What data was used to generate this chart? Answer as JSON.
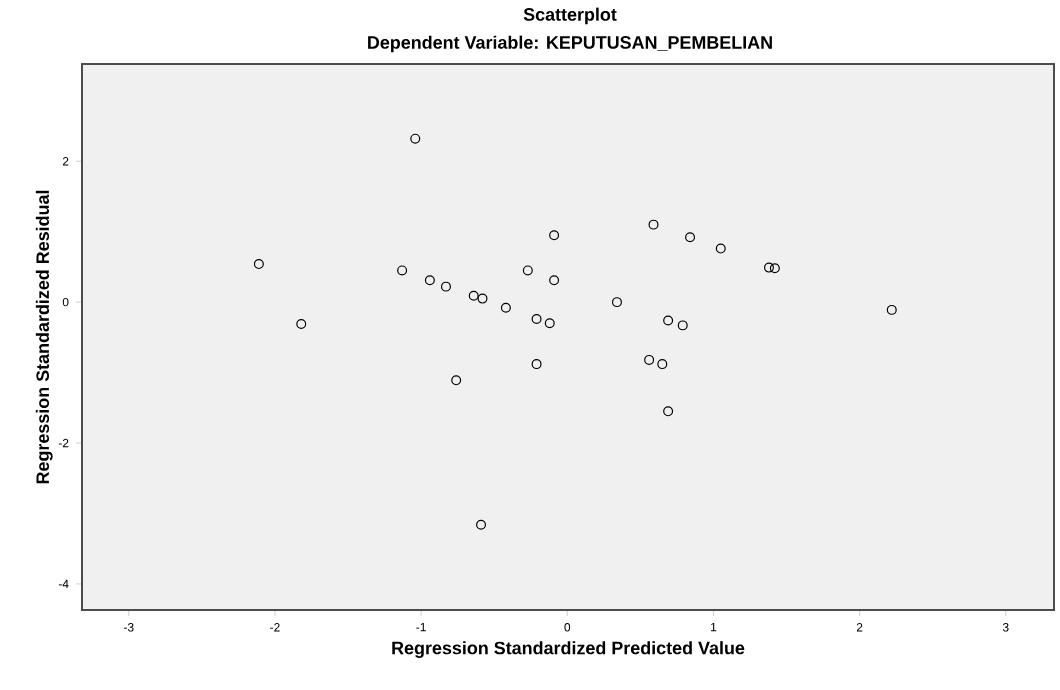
{
  "chart_data": {
    "type": "scatter",
    "title": "Scatterplot",
    "subtitle": "Dependent Variable: KEPUTUSAN_PEMBELIAN",
    "xlabel": "Regression Standardized Predicted Value",
    "ylabel": "Regression Standardized Residual",
    "xlim": [
      -3.32,
      3.33
    ],
    "ylim": [
      -4.37,
      3.38
    ],
    "xticks": [
      -3,
      -2,
      -1,
      0,
      1,
      2,
      3
    ],
    "yticks": [
      -4,
      -2,
      0,
      2
    ],
    "grid": false,
    "marker": "circle",
    "series": [
      {
        "color": "#000000",
        "x": [
          -1.04,
          -2.11,
          -1.82,
          -1.13,
          -0.94,
          -0.83,
          -0.64,
          -0.58,
          -0.42,
          -0.27,
          -0.21,
          -0.12,
          -0.09,
          -0.09,
          0.59,
          0.84,
          1.05,
          1.38,
          1.42,
          0.34,
          0.69,
          0.79,
          2.22,
          -0.76,
          -0.21,
          0.56,
          0.65,
          0.69,
          -0.59
        ],
        "values": [
          2.32,
          0.54,
          -0.31,
          0.45,
          0.31,
          0.22,
          0.09,
          0.05,
          -0.08,
          0.45,
          -0.24,
          -0.3,
          0.95,
          0.31,
          1.1,
          0.92,
          0.76,
          0.49,
          0.48,
          0.0,
          -0.26,
          -0.33,
          -0.11,
          -1.11,
          -0.88,
          -0.82,
          -0.88,
          -1.55,
          -3.16
        ]
      }
    ]
  }
}
